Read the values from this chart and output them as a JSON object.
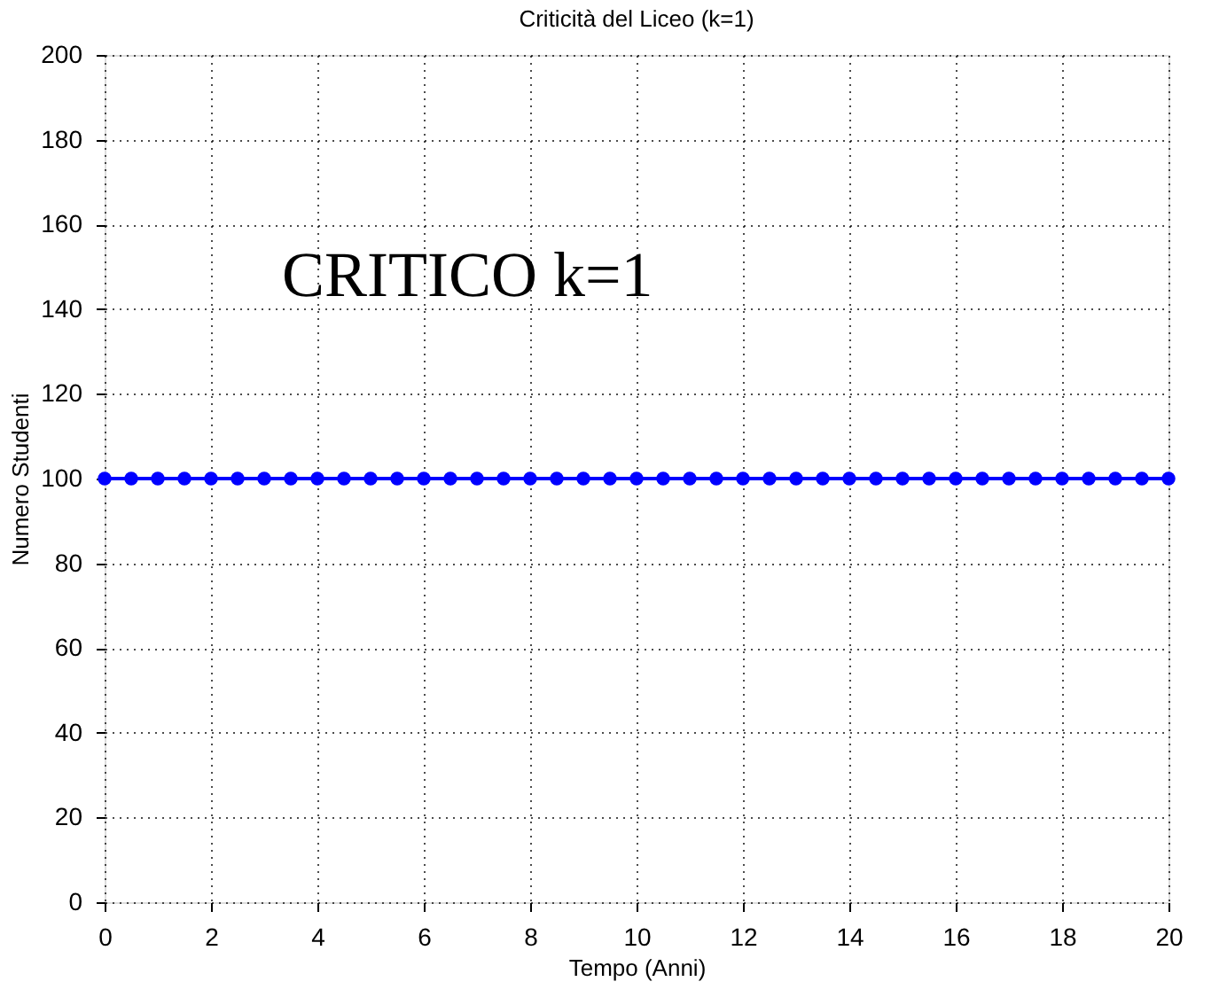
{
  "chart_data": {
    "type": "line",
    "title": "Criticità del Liceo  (k=1)",
    "xlabel": "Tempo (Anni)",
    "ylabel": "Numero Studenti",
    "x": [
      0,
      0.5,
      1,
      1.5,
      2,
      2.5,
      3,
      3.5,
      4,
      4.5,
      5,
      5.5,
      6,
      6.5,
      7,
      7.5,
      8,
      8.5,
      9,
      9.5,
      10,
      10.5,
      11,
      11.5,
      12,
      12.5,
      13,
      13.5,
      14,
      14.5,
      15,
      15.5,
      16,
      16.5,
      17,
      17.5,
      18,
      18.5,
      19,
      19.5,
      20
    ],
    "series": [
      {
        "color": "#0000ff",
        "values": [
          100,
          100,
          100,
          100,
          100,
          100,
          100,
          100,
          100,
          100,
          100,
          100,
          100,
          100,
          100,
          100,
          100,
          100,
          100,
          100,
          100,
          100,
          100,
          100,
          100,
          100,
          100,
          100,
          100,
          100,
          100,
          100,
          100,
          100,
          100,
          100,
          100,
          100,
          100,
          100,
          100
        ]
      }
    ],
    "xlim": [
      0,
      20
    ],
    "xticks": [
      0,
      2,
      4,
      6,
      8,
      10,
      12,
      14,
      16,
      18,
      20
    ],
    "ylim": [
      0,
      200
    ],
    "yticks": [
      0,
      20,
      40,
      60,
      80,
      100,
      120,
      140,
      160,
      180,
      200
    ],
    "grid": true,
    "marker": "circle",
    "line_style": "solid",
    "annotations": [
      "CRITICO k=1"
    ]
  }
}
